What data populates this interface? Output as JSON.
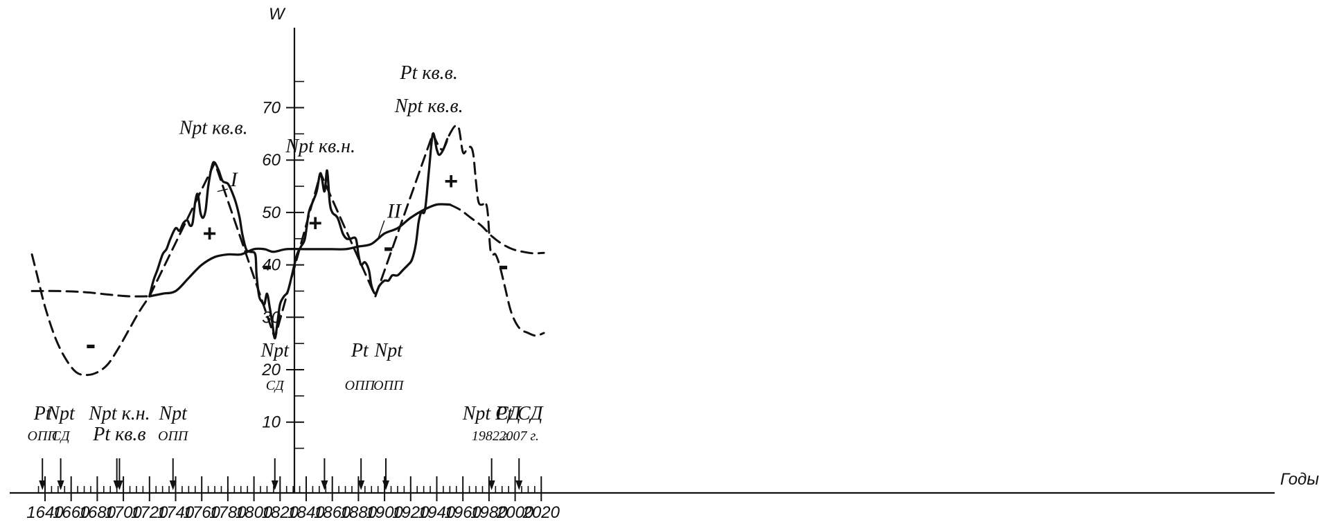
{
  "chart_data": {
    "type": "line",
    "ylabel": "W",
    "xlabel": "Годы",
    "xlim": [
      1630,
      2025
    ],
    "ylim": [
      0,
      75
    ],
    "x_ticks": [
      1640,
      1660,
      1680,
      1700,
      1720,
      1740,
      1760,
      1780,
      1800,
      1820,
      1840,
      1860,
      1880,
      1900,
      1920,
      1940,
      1960,
      1980,
      2000,
      2020
    ],
    "y_ticks": [
      10,
      20,
      30,
      40,
      50,
      60,
      70
    ],
    "series": [
      {
        "name": "I",
        "style": "solid",
        "points": [
          [
            1720,
            34
          ],
          [
            1723,
            37
          ],
          [
            1726,
            39
          ],
          [
            1730,
            42
          ],
          [
            1733,
            43
          ],
          [
            1736,
            45
          ],
          [
            1740,
            47
          ],
          [
            1743,
            46.5
          ],
          [
            1746,
            48
          ],
          [
            1749,
            48.5
          ],
          [
            1751,
            47.5
          ],
          [
            1753,
            48
          ],
          [
            1755,
            52
          ],
          [
            1757,
            53.5
          ],
          [
            1759,
            50
          ],
          [
            1761,
            49
          ],
          [
            1763,
            50.5
          ],
          [
            1765,
            55
          ],
          [
            1768,
            59
          ],
          [
            1770,
            59.5
          ],
          [
            1773,
            58
          ],
          [
            1776,
            56
          ],
          [
            1780,
            55.5
          ],
          [
            1783,
            54
          ],
          [
            1786,
            52
          ],
          [
            1789,
            49
          ],
          [
            1791,
            46
          ],
          [
            1794,
            43
          ],
          [
            1797,
            42.5
          ],
          [
            1801,
            42
          ],
          [
            1802,
            38
          ],
          [
            1804,
            34
          ],
          [
            1806,
            33
          ],
          [
            1808,
            32.5
          ],
          [
            1810,
            34.5
          ],
          [
            1812,
            32
          ],
          [
            1814,
            29
          ],
          [
            1816,
            26
          ],
          [
            1818,
            29
          ],
          [
            1820,
            32.5
          ],
          [
            1823,
            34
          ],
          [
            1826,
            35
          ],
          [
            1830,
            39
          ],
          [
            1833,
            42
          ],
          [
            1836,
            43.5
          ],
          [
            1839,
            45
          ],
          [
            1842,
            50
          ],
          [
            1845,
            52
          ],
          [
            1848,
            54
          ],
          [
            1851,
            57.5
          ],
          [
            1854,
            54
          ],
          [
            1856,
            58
          ],
          [
            1858,
            52
          ],
          [
            1860,
            50
          ],
          [
            1864,
            49
          ],
          [
            1868,
            46
          ],
          [
            1871,
            45
          ],
          [
            1874,
            45
          ],
          [
            1878,
            45
          ],
          [
            1880,
            42
          ],
          [
            1882,
            40
          ],
          [
            1885,
            40.5
          ],
          [
            1888,
            39
          ],
          [
            1890,
            36
          ],
          [
            1893,
            34.5
          ],
          [
            1896,
            36
          ],
          [
            1900,
            37
          ],
          [
            1903,
            37
          ],
          [
            1906,
            38
          ],
          [
            1910,
            38
          ],
          [
            1914,
            39
          ],
          [
            1918,
            40
          ],
          [
            1921,
            41
          ],
          [
            1924,
            44
          ],
          [
            1926,
            48
          ],
          [
            1928,
            50
          ],
          [
            1931,
            50.5
          ],
          [
            1934,
            58
          ],
          [
            1937,
            65
          ],
          [
            1940,
            62
          ],
          [
            1942,
            61
          ],
          [
            1945,
            62
          ],
          [
            1948,
            64
          ]
        ]
      },
      {
        "name": "II",
        "style": "solid",
        "points": [
          [
            1720,
            34
          ],
          [
            1730,
            34.5
          ],
          [
            1740,
            35
          ],
          [
            1750,
            37.5
          ],
          [
            1760,
            40
          ],
          [
            1770,
            41.5
          ],
          [
            1780,
            42
          ],
          [
            1790,
            42
          ],
          [
            1800,
            43
          ],
          [
            1808,
            43
          ],
          [
            1815,
            42.5
          ],
          [
            1825,
            43
          ],
          [
            1840,
            43
          ],
          [
            1850,
            43
          ],
          [
            1860,
            43
          ],
          [
            1870,
            43
          ],
          [
            1880,
            43.5
          ],
          [
            1890,
            44
          ],
          [
            1900,
            46
          ],
          [
            1910,
            47
          ],
          [
            1920,
            49
          ],
          [
            1930,
            50.5
          ],
          [
            1940,
            51.5
          ],
          [
            1950,
            51.5
          ]
        ]
      },
      {
        "name": "",
        "style": "dashed",
        "points": [
          [
            1630,
            42
          ],
          [
            1634,
            38
          ],
          [
            1640,
            32
          ],
          [
            1648,
            26
          ],
          [
            1656,
            22
          ],
          [
            1664,
            19.5
          ],
          [
            1672,
            19
          ],
          [
            1680,
            19.5
          ],
          [
            1688,
            21
          ],
          [
            1696,
            24
          ],
          [
            1704,
            27.5
          ],
          [
            1712,
            31
          ],
          [
            1720,
            34
          ]
        ]
      },
      {
        "name": "",
        "style": "dashed",
        "points": [
          [
            1630,
            35
          ],
          [
            1650,
            35
          ],
          [
            1670,
            34.8
          ],
          [
            1690,
            34.3
          ],
          [
            1705,
            34
          ],
          [
            1720,
            34
          ]
        ]
      },
      {
        "name": "",
        "style": "dashed",
        "points": [
          [
            1720,
            34
          ],
          [
            1770,
            59.5
          ],
          [
            1816,
            26
          ],
          [
            1851,
            57.5
          ],
          [
            1893,
            34
          ],
          [
            1937,
            65
          ]
        ]
      },
      {
        "name": "",
        "style": "dashed",
        "points": [
          [
            1937,
            65
          ],
          [
            1944,
            62
          ],
          [
            1950,
            65
          ],
          [
            1954,
            66.5
          ],
          [
            1957,
            66
          ],
          [
            1960,
            61.5
          ],
          [
            1963,
            62
          ],
          [
            1966,
            62.5
          ],
          [
            1968,
            61
          ],
          [
            1970,
            56
          ],
          [
            1972,
            52
          ],
          [
            1975,
            51.5
          ],
          [
            1977,
            52
          ],
          [
            1979,
            50
          ],
          [
            1981,
            43
          ],
          [
            1983,
            42
          ],
          [
            1985,
            42
          ],
          [
            1988,
            40
          ],
          [
            1992,
            36
          ],
          [
            1997,
            31
          ],
          [
            2003,
            28
          ],
          [
            2010,
            27
          ],
          [
            2016,
            26.5
          ],
          [
            2022,
            27
          ]
        ]
      },
      {
        "name": "",
        "style": "dashed",
        "points": [
          [
            1950,
            51.5
          ],
          [
            1958,
            50.5
          ],
          [
            1966,
            49
          ],
          [
            1974,
            47.5
          ],
          [
            1982,
            45.5
          ],
          [
            1990,
            44
          ],
          [
            1998,
            43
          ],
          [
            2006,
            42.5
          ],
          [
            2014,
            42.2
          ],
          [
            2022,
            42.3
          ]
        ]
      }
    ],
    "curve_labels": [
      {
        "text": "I",
        "x": 1782,
        "y": 55,
        "target": [
          1772,
          54
        ]
      },
      {
        "text": "II",
        "x": 1902,
        "y": 49,
        "target": [
          1895,
          45
        ]
      }
    ],
    "signs": [
      {
        "text": "+",
        "x": 1766,
        "y": 44.5
      },
      {
        "text": "-",
        "x": 1810,
        "y": 38
      },
      {
        "text": "+",
        "x": 1847,
        "y": 46.5
      },
      {
        "text": "-",
        "x": 1903,
        "y": 41.5
      },
      {
        "text": "+",
        "x": 1951,
        "y": 54.5
      },
      {
        "text": "-",
        "x": 1675,
        "y": 23
      },
      {
        "text": "-",
        "x": 1991,
        "y": 38
      }
    ],
    "peak_annotations": [
      {
        "lines": [
          {
            "text": "Npt кв.в.",
            "small": false
          }
        ],
        "x": 1769,
        "y": 65
      },
      {
        "lines": [
          {
            "text": "Npt кв.н.",
            "small": false
          }
        ],
        "x": 1851,
        "y": 61.5
      },
      {
        "lines": [
          {
            "text": "Pt кв.в.",
            "small": false
          },
          {
            "text": "Npt кв.в.",
            "small": false
          }
        ],
        "x": 1934,
        "y": 75.5
      },
      {
        "lines": [
          {
            "text": "Npt",
            "small": false
          },
          {
            "text": "СД",
            "small": true
          }
        ],
        "x": 1816,
        "y": 22.5
      },
      {
        "lines": [
          {
            "text": "Pt",
            "small": false
          },
          {
            "text": "ОПП",
            "small": true
          }
        ],
        "x": 1881,
        "y": 22.5
      },
      {
        "lines": [
          {
            "text": "Npt",
            "small": false
          },
          {
            "text": "ОПП",
            "small": true
          }
        ],
        "x": 1903,
        "y": 22.5
      }
    ],
    "event_markers": [
      {
        "x": 1638,
        "lines": [
          {
            "text": "Pt",
            "small": false
          },
          {
            "text": "ОПП",
            "small": true
          }
        ]
      },
      {
        "x": 1652,
        "lines": [
          {
            "text": "Npt",
            "small": false
          },
          {
            "text": "СД",
            "small": true
          }
        ]
      },
      {
        "x": 1695,
        "lines": []
      },
      {
        "x": 1697,
        "lines": [
          {
            "text": "Npt к.н.",
            "small": false
          },
          {
            "text": "Pt кв.в",
            "small": false
          }
        ]
      },
      {
        "x": 1738,
        "lines": [
          {
            "text": "Npt",
            "small": false
          },
          {
            "text": "ОПП",
            "small": true
          }
        ]
      },
      {
        "x": 1816,
        "lines": []
      },
      {
        "x": 1854,
        "lines": []
      },
      {
        "x": 1882,
        "lines": []
      },
      {
        "x": 1901,
        "lines": []
      },
      {
        "x": 1982,
        "lines": [
          {
            "text": "Npt СД",
            "small": false
          },
          {
            "text": "1982 г.",
            "small": true
          }
        ]
      },
      {
        "x": 2003,
        "lines": [
          {
            "text": "Pt СД",
            "small": false
          },
          {
            "text": "2007 г.",
            "small": true
          }
        ]
      }
    ]
  }
}
